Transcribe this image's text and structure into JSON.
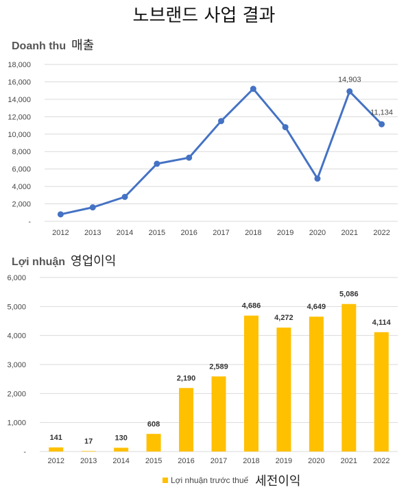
{
  "title": "노브랜드 사업 결과",
  "revenue": {
    "title_vi": "Doanh thu",
    "title_ko": "매출"
  },
  "profit": {
    "title_vi": "Lợi nhuận",
    "title_ko": "영업이익"
  },
  "legend": {
    "label": "Lợi nhuận trước thuế",
    "label_ko": "세전이익"
  },
  "colors": {
    "line": "#4472C4",
    "bar": "#FFC000",
    "grid": "#D9D9D9"
  },
  "chart_data": [
    {
      "type": "line",
      "title": "Doanh thu 매출",
      "x": [
        "2012",
        "2013",
        "2014",
        "2015",
        "2016",
        "2017",
        "2018",
        "2019",
        "2020",
        "2021",
        "2022"
      ],
      "series": [
        {
          "values": [
            800,
            1600,
            2800,
            6600,
            7300,
            11500,
            15200,
            10800,
            4900,
            14903,
            11134
          ]
        }
      ],
      "data_labels": {
        "2021": "14,903",
        "2022": "11,134"
      },
      "ylim": [
        0,
        18000
      ],
      "yticks": [
        0,
        2000,
        4000,
        6000,
        8000,
        10000,
        12000,
        14000,
        16000,
        18000
      ],
      "ytick_labels": [
        "-",
        "2,000",
        "4,000",
        "6,000",
        "8,000",
        "10,000",
        "12,000",
        "14,000",
        "16,000",
        "18,000"
      ],
      "grid": true
    },
    {
      "type": "bar",
      "title": "Lợi nhuận 영업이익",
      "categories": [
        "2012",
        "2013",
        "2014",
        "2015",
        "2016",
        "2017",
        "2018",
        "2019",
        "2020",
        "2021",
        "2022"
      ],
      "series": [
        {
          "name": "Lợi nhuận trước thuế",
          "values": [
            141,
            17,
            130,
            608,
            2190,
            2589,
            4686,
            4272,
            4649,
            5086,
            4114
          ]
        }
      ],
      "data_labels": [
        "141",
        "17",
        "130",
        "608",
        "2,190",
        "2,589",
        "4,686",
        "4,272",
        "4,649",
        "5,086",
        "4,114"
      ],
      "ylim": [
        0,
        6000
      ],
      "yticks": [
        0,
        1000,
        2000,
        3000,
        4000,
        5000,
        6000
      ],
      "ytick_labels": [
        "-",
        "1,000",
        "2,000",
        "3,000",
        "4,000",
        "5,000",
        "6,000"
      ],
      "grid": true,
      "legend": "bottom"
    }
  ]
}
